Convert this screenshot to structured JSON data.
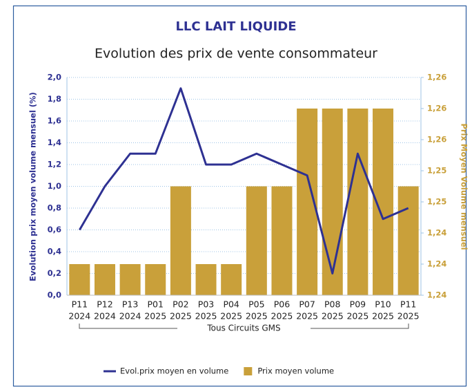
{
  "chart_data": {
    "type": "bar-line",
    "title": "LLC LAIT LIQUIDE",
    "subtitle": "Evolution des prix de vente consommateur",
    "ylabel": "Evolution prix moyen volume mensuel (%)",
    "y2label": "Prix Moyen Volume mensuel",
    "group_label": "Tous Circuits GMS",
    "categories": [
      [
        "P11",
        "2024"
      ],
      [
        "P12",
        "2024"
      ],
      [
        "P13",
        "2024"
      ],
      [
        "P01",
        "2025"
      ],
      [
        "P02",
        "2025"
      ],
      [
        "P03",
        "2025"
      ],
      [
        "P04",
        "2025"
      ],
      [
        "P05",
        "2025"
      ],
      [
        "P06",
        "2025"
      ],
      [
        "P07",
        "2025"
      ],
      [
        "P08",
        "2025"
      ],
      [
        "P09",
        "2025"
      ],
      [
        "P10",
        "2025"
      ],
      [
        "P11",
        "2025"
      ]
    ],
    "series": [
      {
        "name": "Evol.prix moyen en volume",
        "color": "#2e3192",
        "kind": "line",
        "axis": "y",
        "values": [
          0.6,
          1.0,
          1.3,
          1.3,
          1.9,
          1.2,
          1.2,
          1.3,
          1.2,
          1.1,
          0.2,
          1.3,
          0.7,
          0.8
        ]
      },
      {
        "name": "Prix moyen volume",
        "color": "#c9a03a",
        "kind": "bar",
        "axis": "y2",
        "values": [
          1.24,
          1.24,
          1.24,
          1.24,
          1.25,
          1.24,
          1.24,
          1.25,
          1.25,
          1.26,
          1.26,
          1.26,
          1.26,
          1.25
        ]
      }
    ],
    "ylim": [
      0,
      2
    ],
    "yticks": [
      {
        "value": 0,
        "label": "0,0"
      },
      {
        "value": 0.2,
        "label": "0,2"
      },
      {
        "value": 0.4,
        "label": "0,4"
      },
      {
        "value": 0.6,
        "label": "0,6"
      },
      {
        "value": 0.8,
        "label": "0,8"
      },
      {
        "value": 1.0,
        "label": "1,0"
      },
      {
        "value": 1.2,
        "label": "1,2"
      },
      {
        "value": 1.4,
        "label": "1,4"
      },
      {
        "value": 1.6,
        "label": "1,6"
      },
      {
        "value": 1.8,
        "label": "1,8"
      },
      {
        "value": 2.0,
        "label": "2,0"
      }
    ],
    "y2lim": [
      1.236,
      1.264
    ],
    "y2ticks": [
      {
        "value": 1.236,
        "label": "1,24"
      },
      {
        "value": 1.24,
        "label": "1,24"
      },
      {
        "value": 1.244,
        "label": "1,24"
      },
      {
        "value": 1.248,
        "label": "1,25"
      },
      {
        "value": 1.252,
        "label": "1,25"
      },
      {
        "value": 1.256,
        "label": "1,26"
      },
      {
        "value": 1.26,
        "label": "1,26"
      },
      {
        "value": 1.264,
        "label": "1,26"
      }
    ],
    "grid": true,
    "legend": "bottom"
  }
}
